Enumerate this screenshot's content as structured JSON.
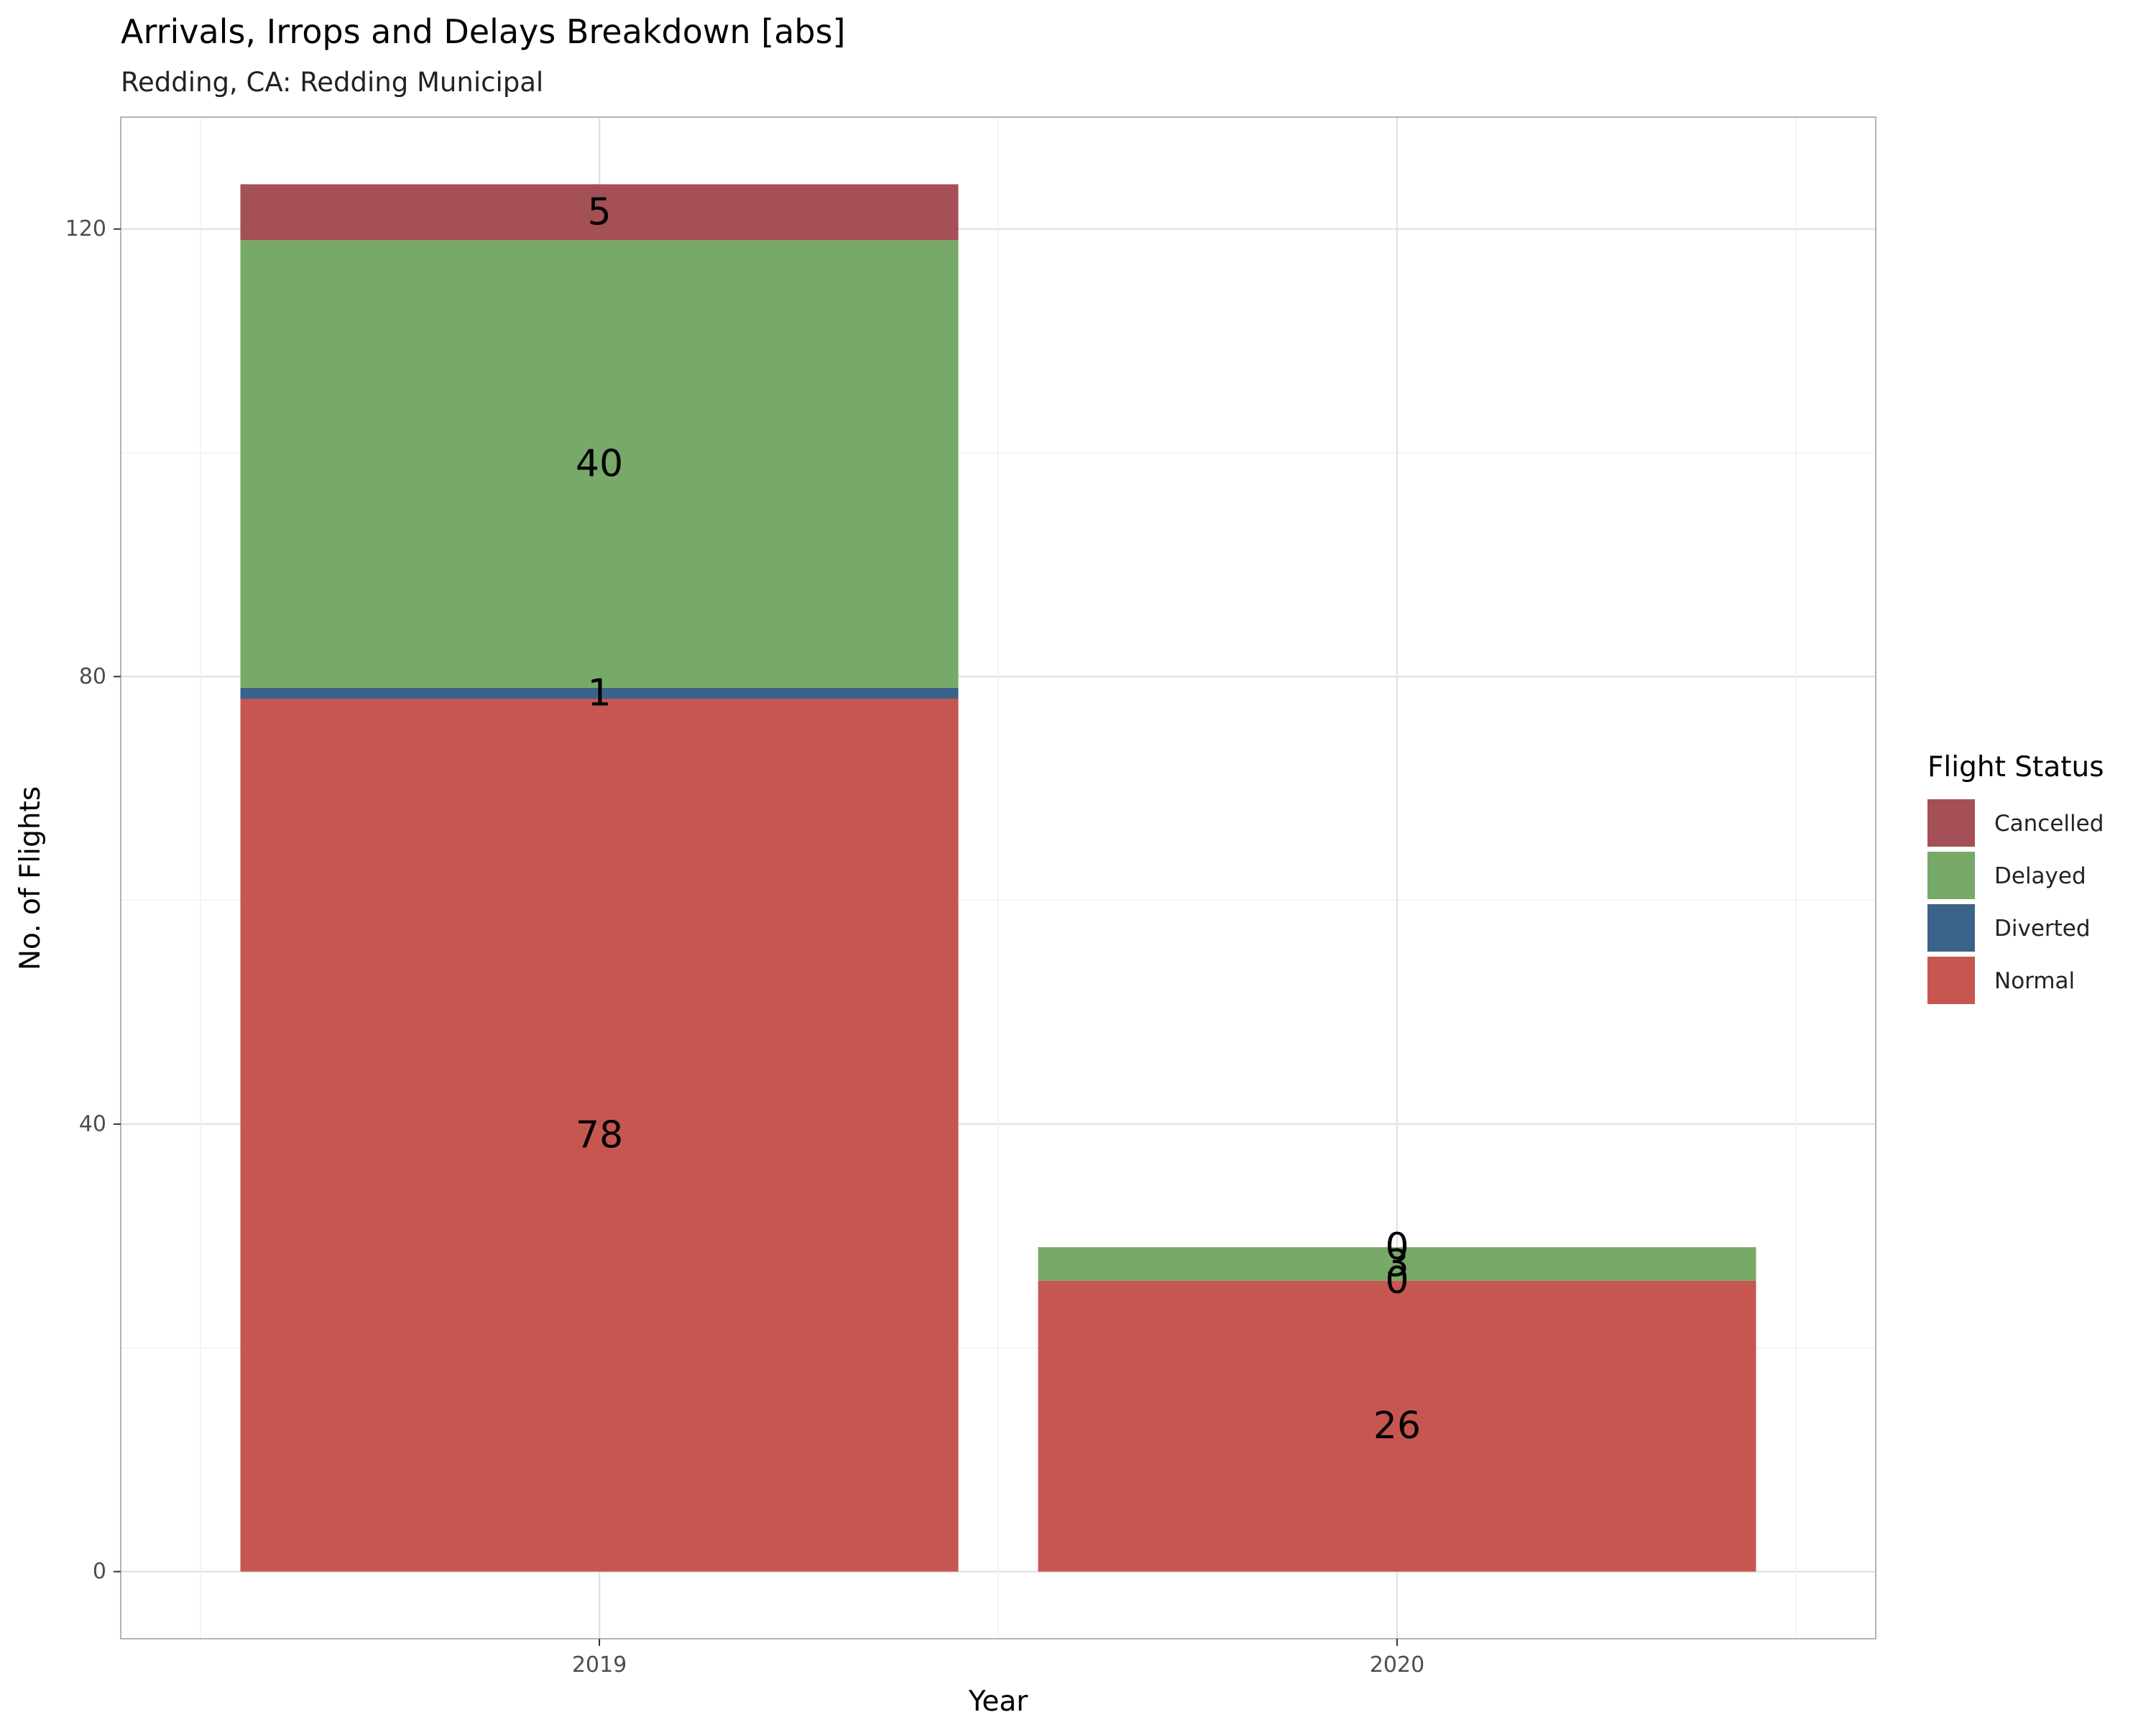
{
  "chart_data": {
    "type": "bar",
    "stacked": true,
    "title": "Arrivals, Irrops and Delays Breakdown [abs]",
    "subtitle": "Redding, CA: Redding Municipal",
    "xlabel": "Year",
    "ylabel": "No. of Flights",
    "categories": [
      "2019",
      "2020"
    ],
    "yticks": [
      "0",
      "40",
      "80",
      "120"
    ],
    "ylim": [
      -6,
      130
    ],
    "grid": true,
    "legend": {
      "title": "Flight Status",
      "placement": "right"
    },
    "series": [
      {
        "name": "Normal",
        "values": [
          78,
          26
        ],
        "labels": [
          "78",
          "26"
        ],
        "color": "#c65750"
      },
      {
        "name": "Diverted",
        "values": [
          1,
          0
        ],
        "labels": [
          "1",
          "0"
        ],
        "color": "#3b638a"
      },
      {
        "name": "Delayed",
        "values": [
          40,
          3
        ],
        "labels": [
          "40",
          "3"
        ],
        "color": "#77a968"
      },
      {
        "name": "Cancelled",
        "values": [
          5,
          0
        ],
        "labels": [
          "5",
          "0"
        ],
        "color": "#a45056"
      }
    ],
    "legend_order": [
      "Cancelled",
      "Delayed",
      "Diverted",
      "Normal"
    ]
  }
}
